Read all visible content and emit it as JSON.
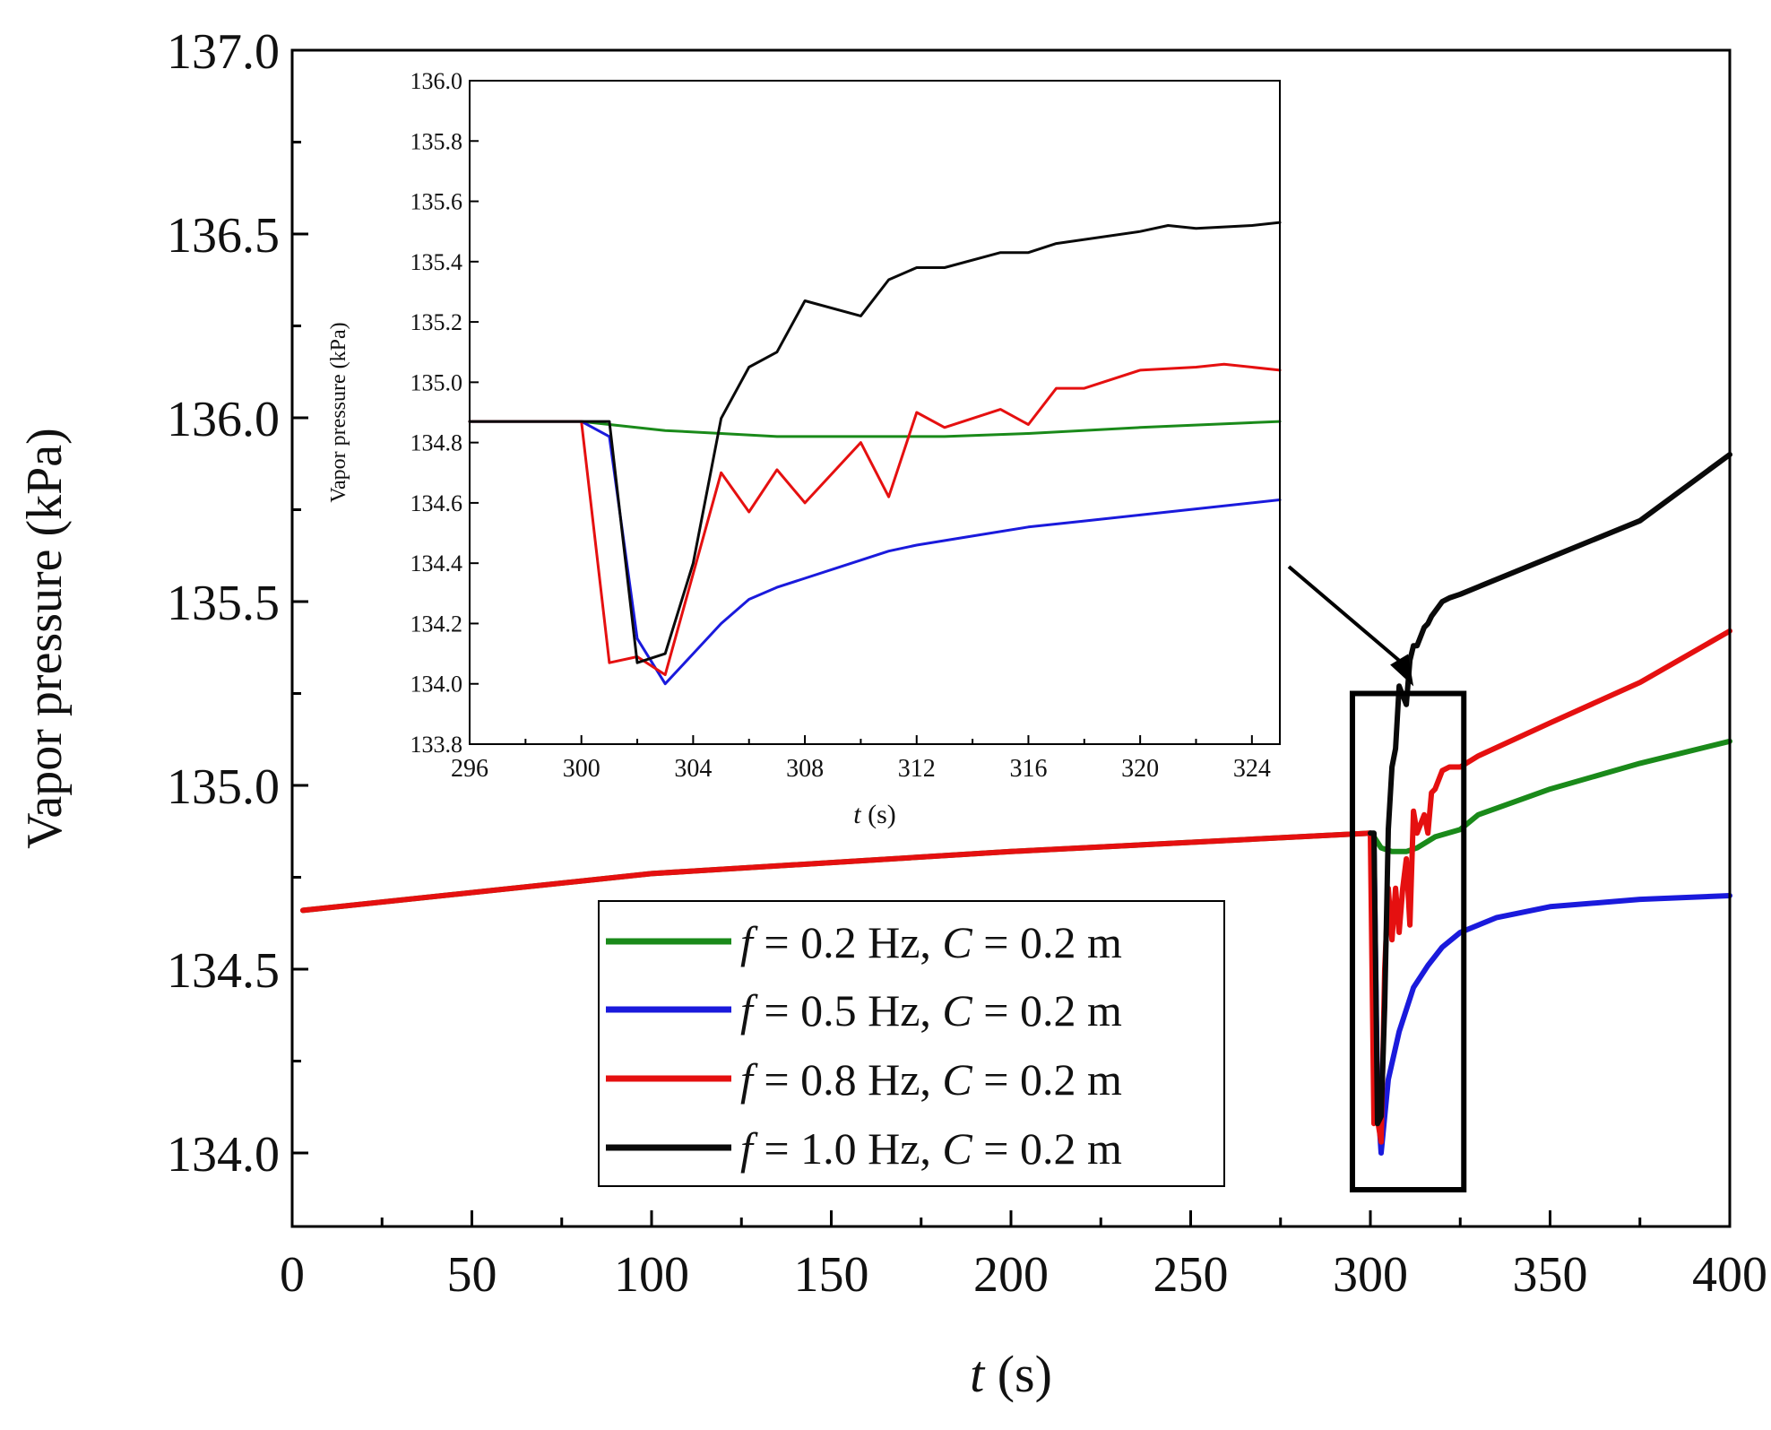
{
  "chart_data": [
    {
      "id": "main",
      "type": "line",
      "xlabel_var": "t",
      "xlabel_unit": " (s)",
      "ylabel": "Vapor pressure (kPa)",
      "xlim": [
        0,
        400
      ],
      "ylim": [
        133.8,
        137.0
      ],
      "xticks": [
        0,
        50,
        100,
        150,
        200,
        250,
        300,
        350,
        400
      ],
      "xtick_labels": [
        "0",
        "50",
        "100",
        "150",
        "200",
        "250",
        "300",
        "350",
        "400"
      ],
      "yticks": [
        134.0,
        134.5,
        135.0,
        135.5,
        136.0,
        136.5,
        137.0
      ],
      "ytick_labels": [
        "134.0",
        "134.5",
        "135.0",
        "135.5",
        "136.0",
        "136.5",
        "137.0"
      ],
      "zoom_box": {
        "x": [
          295,
          326
        ],
        "y": [
          133.9,
          135.25
        ]
      },
      "series": [
        {
          "name": "f = 0.2 Hz, C = 0.2 m",
          "color": "#1a8a1a",
          "points": [
            [
              3,
              134.66
            ],
            [
              100,
              134.76
            ],
            [
              200,
              134.82
            ],
            [
              300,
              134.87
            ],
            [
              301,
              134.86
            ],
            [
              303,
              134.83
            ],
            [
              306,
              134.82
            ],
            [
              310,
              134.82
            ],
            [
              313,
              134.83
            ],
            [
              318,
              134.86
            ],
            [
              325,
              134.88
            ],
            [
              330,
              134.92
            ],
            [
              350,
              134.99
            ],
            [
              375,
              135.06
            ],
            [
              400,
              135.12
            ]
          ]
        },
        {
          "name": "f = 0.5 Hz, C = 0.2 m",
          "color": "#1a1adc",
          "points": [
            [
              300,
              134.87
            ],
            [
              301,
              134.84
            ],
            [
              302,
              134.15
            ],
            [
              303,
              134.0
            ],
            [
              305,
              134.2
            ],
            [
              308,
              134.33
            ],
            [
              312,
              134.45
            ],
            [
              316,
              134.51
            ],
            [
              320,
              134.56
            ],
            [
              325,
              134.6
            ],
            [
              335,
              134.64
            ],
            [
              350,
              134.67
            ],
            [
              375,
              134.69
            ],
            [
              400,
              134.7
            ]
          ]
        },
        {
          "name": "f = 0.8 Hz, C = 0.2 m",
          "color": "#e51010",
          "points": [
            [
              3,
              134.66
            ],
            [
              100,
              134.76
            ],
            [
              200,
              134.82
            ],
            [
              300,
              134.87
            ],
            [
              301,
              134.08
            ],
            [
              302,
              134.09
            ],
            [
              303,
              134.03
            ],
            [
              304,
              134.5
            ],
            [
              305,
              134.72
            ],
            [
              306,
              134.58
            ],
            [
              307,
              134.72
            ],
            [
              308,
              134.6
            ],
            [
              309,
              134.72
            ],
            [
              310,
              134.8
            ],
            [
              311,
              134.62
            ],
            [
              312,
              134.93
            ],
            [
              313,
              134.87
            ],
            [
              315,
              134.92
            ],
            [
              316,
              134.87
            ],
            [
              317,
              134.98
            ],
            [
              318,
              134.99
            ],
            [
              320,
              135.04
            ],
            [
              322,
              135.05
            ],
            [
              325,
              135.05
            ],
            [
              330,
              135.08
            ],
            [
              350,
              135.17
            ],
            [
              375,
              135.28
            ],
            [
              400,
              135.42
            ]
          ]
        },
        {
          "name": "f = 1.0 Hz, C = 0.2 m",
          "color": "#0a0a0a",
          "points": [
            [
              300,
              134.87
            ],
            [
              301,
              134.87
            ],
            [
              302,
              134.08
            ],
            [
              303,
              134.1
            ],
            [
              304,
              134.4
            ],
            [
              305,
              134.88
            ],
            [
              306,
              135.05
            ],
            [
              307,
              135.1
            ],
            [
              308,
              135.27
            ],
            [
              310,
              135.22
            ],
            [
              311,
              135.34
            ],
            [
              312,
              135.38
            ],
            [
              313,
              135.38
            ],
            [
              315,
              135.43
            ],
            [
              316,
              135.44
            ],
            [
              317,
              135.46
            ],
            [
              320,
              135.5
            ],
            [
              322,
              135.51
            ],
            [
              325,
              135.52
            ],
            [
              330,
              135.54
            ],
            [
              350,
              135.62
            ],
            [
              375,
              135.72
            ],
            [
              400,
              135.9
            ]
          ]
        }
      ],
      "legend": {
        "position": "bottom-center",
        "entries": [
          {
            "f_var": "f",
            "f_text": " = 0.2 Hz, ",
            "c_var": "C",
            "c_text": " = 0.2 m"
          },
          {
            "f_var": "f",
            "f_text": " = 0.5 Hz, ",
            "c_var": "C",
            "c_text": " = 0.2 m"
          },
          {
            "f_var": "f",
            "f_text": " = 0.8 Hz, ",
            "c_var": "C",
            "c_text": " = 0.2 m"
          },
          {
            "f_var": "f",
            "f_text": " = 1.0 Hz, ",
            "c_var": "C",
            "c_text": " = 0.2 m"
          }
        ]
      }
    },
    {
      "id": "inset",
      "type": "line",
      "xlabel_var": "t",
      "xlabel_unit": " (s)",
      "ylabel": "Vapor pressure (kPa)",
      "xlim": [
        296,
        325
      ],
      "ylim": [
        133.8,
        136.0
      ],
      "xticks": [
        296,
        300,
        304,
        308,
        312,
        316,
        320,
        324
      ],
      "xtick_labels": [
        "296",
        "300",
        "304",
        "308",
        "312",
        "316",
        "320",
        "324"
      ],
      "yticks": [
        133.8,
        134.0,
        134.2,
        134.4,
        134.6,
        134.8,
        135.0,
        135.2,
        135.4,
        135.6,
        135.8,
        136.0
      ],
      "ytick_labels": [
        "133.8",
        "134.0",
        "134.2",
        "134.4",
        "134.6",
        "134.8",
        "135.0",
        "135.2",
        "135.4",
        "135.6",
        "135.8",
        "136.0"
      ],
      "series": [
        {
          "name": "f = 0.2 Hz, C = 0.2 m",
          "color": "#1a8a1a",
          "points": [
            [
              296,
              134.87
            ],
            [
              300,
              134.87
            ],
            [
              301,
              134.86
            ],
            [
              303,
              134.84
            ],
            [
              305,
              134.83
            ],
            [
              307,
              134.82
            ],
            [
              310,
              134.82
            ],
            [
              313,
              134.82
            ],
            [
              316,
              134.83
            ],
            [
              320,
              134.85
            ],
            [
              325,
              134.87
            ]
          ]
        },
        {
          "name": "f = 0.5 Hz, C = 0.2 m",
          "color": "#1a1adc",
          "points": [
            [
              296,
              134.87
            ],
            [
              300,
              134.87
            ],
            [
              301,
              134.82
            ],
            [
              302,
              134.15
            ],
            [
              303,
              134.0
            ],
            [
              304,
              134.1
            ],
            [
              305,
              134.2
            ],
            [
              306,
              134.28
            ],
            [
              307,
              134.32
            ],
            [
              308,
              134.35
            ],
            [
              310,
              134.41
            ],
            [
              311,
              134.44
            ],
            [
              312,
              134.46
            ],
            [
              314,
              134.49
            ],
            [
              316,
              134.52
            ],
            [
              318,
              134.54
            ],
            [
              320,
              134.56
            ],
            [
              322,
              134.58
            ],
            [
              325,
              134.61
            ]
          ]
        },
        {
          "name": "f = 0.8 Hz, C = 0.2 m",
          "color": "#e51010",
          "points": [
            [
              296,
              134.87
            ],
            [
              300,
              134.87
            ],
            [
              301,
              134.07
            ],
            [
              302,
              134.09
            ],
            [
              303,
              134.03
            ],
            [
              305,
              134.7
            ],
            [
              306,
              134.57
            ],
            [
              307,
              134.71
            ],
            [
              308,
              134.6
            ],
            [
              310,
              134.8
            ],
            [
              311,
              134.62
            ],
            [
              312,
              134.9
            ],
            [
              313,
              134.85
            ],
            [
              315,
              134.91
            ],
            [
              316,
              134.86
            ],
            [
              317,
              134.98
            ],
            [
              318,
              134.98
            ],
            [
              320,
              135.04
            ],
            [
              322,
              135.05
            ],
            [
              323,
              135.06
            ],
            [
              325,
              135.04
            ]
          ]
        },
        {
          "name": "f = 1.0 Hz, C = 0.2 m",
          "color": "#0a0a0a",
          "points": [
            [
              296,
              134.87
            ],
            [
              300,
              134.87
            ],
            [
              301,
              134.87
            ],
            [
              302,
              134.07
            ],
            [
              303,
              134.1
            ],
            [
              304,
              134.4
            ],
            [
              305,
              134.88
            ],
            [
              306,
              135.05
            ],
            [
              307,
              135.1
            ],
            [
              308,
              135.27
            ],
            [
              310,
              135.22
            ],
            [
              311,
              135.34
            ],
            [
              312,
              135.38
            ],
            [
              313,
              135.38
            ],
            [
              315,
              135.43
            ],
            [
              316,
              135.43
            ],
            [
              317,
              135.46
            ],
            [
              320,
              135.5
            ],
            [
              321,
              135.52
            ],
            [
              322,
              135.51
            ],
            [
              324,
              135.52
            ],
            [
              325,
              135.53
            ]
          ]
        }
      ]
    }
  ]
}
